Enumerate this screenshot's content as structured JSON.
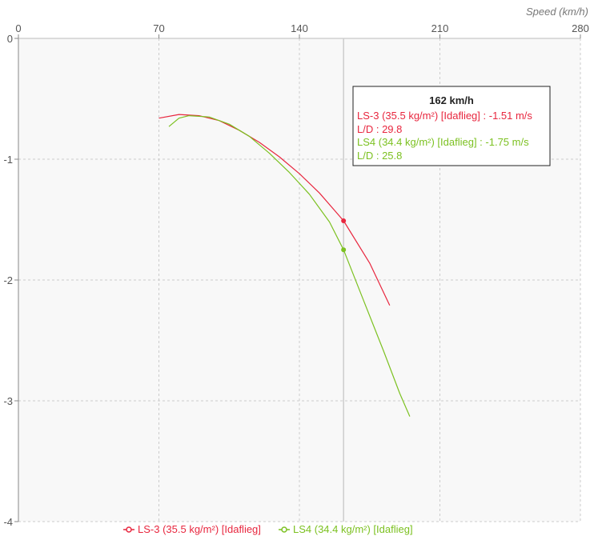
{
  "chart_data": {
    "type": "line",
    "xlabel": "Speed (km/h)",
    "ylabel": "",
    "xlim": [
      0,
      280
    ],
    "ylim": [
      -4,
      0
    ],
    "x_ticks": [
      0,
      70,
      140,
      210,
      280
    ],
    "y_ticks": [
      0,
      -1,
      -2,
      -3,
      -4
    ],
    "grid": true,
    "legend_position": "bottom-center",
    "cursor_x": 162,
    "series": [
      {
        "name": "LS-3 (35.5 kg/m²) [Idaflieg]",
        "color": "#e8263e",
        "points": [
          [
            70,
            -0.66
          ],
          [
            80,
            -0.63
          ],
          [
            90,
            -0.64
          ],
          [
            100,
            -0.68
          ],
          [
            110,
            -0.76
          ],
          [
            120,
            -0.86
          ],
          [
            130,
            -0.98
          ],
          [
            140,
            -1.12
          ],
          [
            150,
            -1.28
          ],
          [
            162,
            -1.51
          ],
          [
            175,
            -1.86
          ],
          [
            185,
            -2.21
          ]
        ]
      },
      {
        "name": "LS4 (34.4 kg/m²) [Idaflieg]",
        "color": "#7cc121",
        "points": [
          [
            75,
            -0.73
          ],
          [
            80,
            -0.66
          ],
          [
            85,
            -0.64
          ],
          [
            95,
            -0.65
          ],
          [
            105,
            -0.71
          ],
          [
            115,
            -0.81
          ],
          [
            125,
            -0.95
          ],
          [
            135,
            -1.11
          ],
          [
            145,
            -1.29
          ],
          [
            155,
            -1.52
          ],
          [
            162,
            -1.75
          ],
          [
            172,
            -2.17
          ],
          [
            182,
            -2.59
          ],
          [
            190,
            -2.94
          ],
          [
            195,
            -3.13
          ]
        ]
      }
    ],
    "tooltip": {
      "title": "162 km/h",
      "lines": [
        {
          "text": "LS-3 (35.5 kg/m²) [Idaflieg] : -1.51 m/s",
          "color": "#e8263e"
        },
        {
          "text": "L/D : 29.8",
          "color": "#e8263e"
        },
        {
          "text": "LS4 (34.4 kg/m²) [Idaflieg] : -1.75 m/s",
          "color": "#7cc121"
        },
        {
          "text": "L/D : 25.8",
          "color": "#7cc121"
        }
      ]
    }
  }
}
